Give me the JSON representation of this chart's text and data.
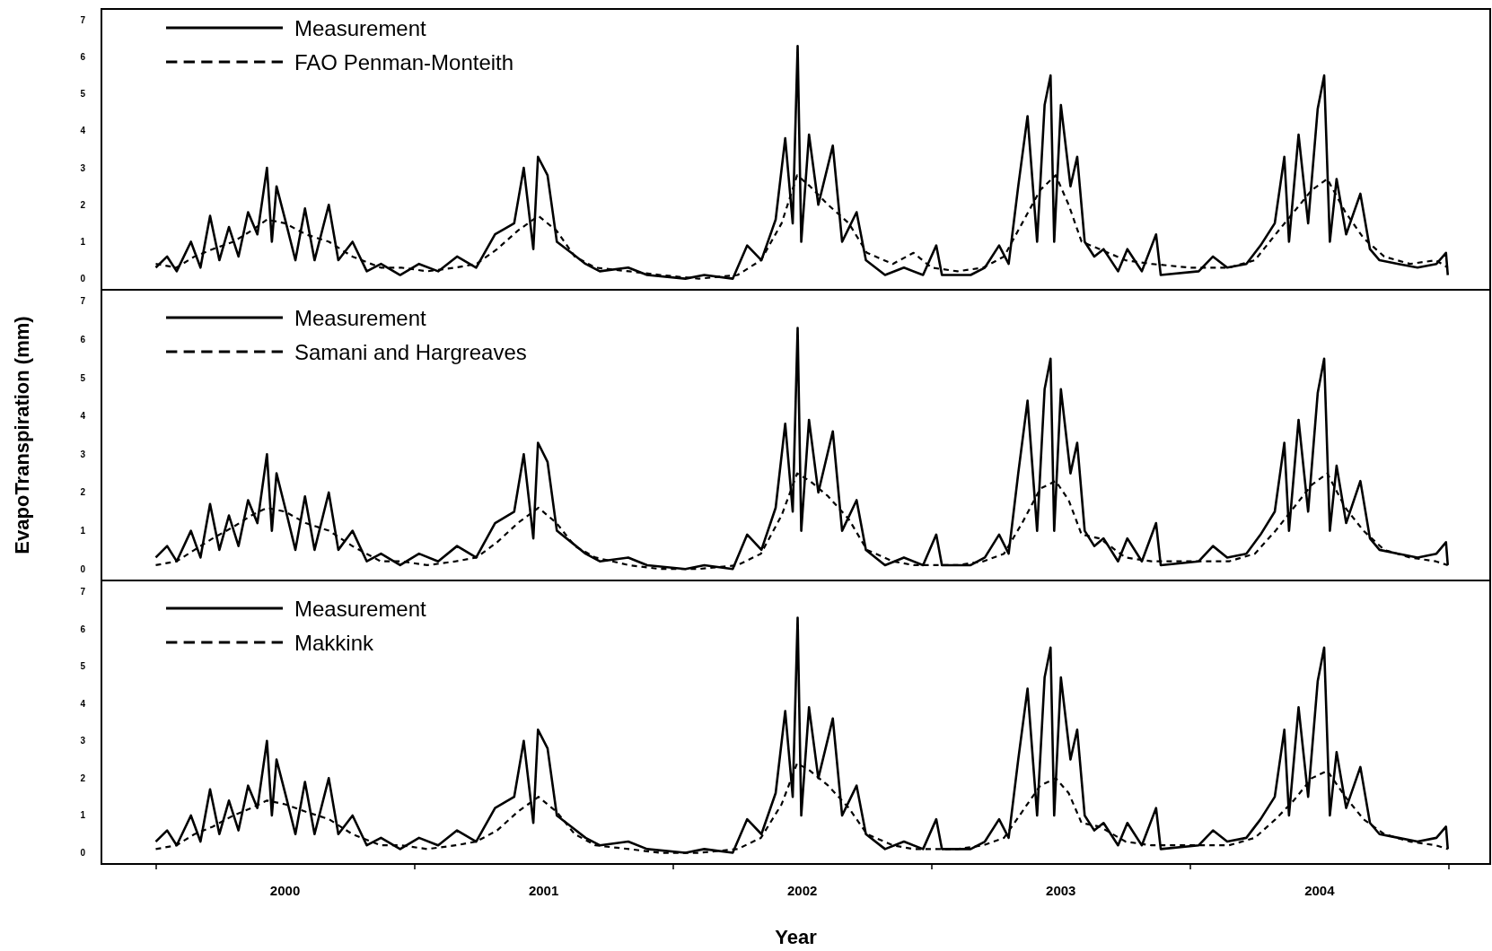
{
  "chart_data": [
    {
      "type": "line",
      "legend": "top left",
      "marker": "none",
      "grid": false,
      "tick_labels": "y",
      "xlim": [
        1999.29,
        2004.66
      ],
      "ylim": [
        -0.3,
        7.3
      ],
      "yticks": [
        0,
        1,
        2,
        3,
        4,
        5,
        6,
        7
      ],
      "series": [
        {
          "name": "Measurement",
          "color": "#000000",
          "line_style": "solid",
          "x": [
            1999.5,
            1999.544,
            1999.581,
            1999.636,
            1999.673,
            1999.71,
            1999.746,
            1999.783,
            1999.82,
            1999.857,
            1999.893,
            1999.93,
            1999.949,
            1999.967,
            2000.004,
            2000.04,
            2000.077,
            2000.114,
            2000.169,
            2000.206,
            2000.261,
            2000.316,
            2000.371,
            2000.445,
            2000.518,
            2000.592,
            2000.665,
            2000.739,
            2000.812,
            2000.886,
            2000.923,
            2000.96,
            2000.978,
            2001.015,
            2001.051,
            2001.107,
            2001.162,
            2001.217,
            2001.327,
            2001.4,
            2001.548,
            2001.621,
            2001.731,
            2001.787,
            2001.842,
            2001.897,
            2001.934,
            2001.963,
            2001.982,
            2001.996,
            2002.026,
            2002.062,
            2002.118,
            2002.154,
            2002.21,
            2002.246,
            2002.32,
            2002.393,
            2002.467,
            2002.518,
            2002.54,
            2002.651,
            2002.706,
            2002.761,
            2002.798,
            2002.835,
            2002.871,
            2002.908,
            2002.937,
            2002.96,
            2002.974,
            2003.0,
            2003.037,
            2003.063,
            2003.092,
            2003.129,
            2003.165,
            2003.221,
            2003.257,
            2003.313,
            2003.368,
            2003.386,
            2003.533,
            2003.588,
            2003.643,
            2003.717,
            2003.772,
            2003.827,
            2003.864,
            2003.882,
            2003.919,
            2003.956,
            2003.993,
            2004.018,
            2004.04,
            2004.066,
            2004.103,
            2004.158,
            2004.195,
            2004.232,
            2004.305,
            2004.379,
            2004.452,
            2004.489,
            2004.496
          ],
          "values": [
            0.3,
            0.6,
            0.2,
            1.0,
            0.3,
            1.7,
            0.5,
            1.4,
            0.6,
            1.8,
            1.2,
            3.0,
            1.0,
            2.5,
            1.5,
            0.5,
            1.9,
            0.5,
            2.0,
            0.5,
            1.0,
            0.2,
            0.4,
            0.1,
            0.4,
            0.2,
            0.6,
            0.3,
            1.2,
            1.5,
            3.0,
            0.8,
            3.3,
            2.8,
            1.0,
            0.7,
            0.4,
            0.2,
            0.3,
            0.1,
            0.0,
            0.1,
            0.0,
            0.9,
            0.5,
            1.6,
            3.8,
            1.5,
            6.3,
            1.0,
            3.9,
            2.0,
            3.6,
            1.0,
            1.8,
            0.5,
            0.1,
            0.3,
            0.1,
            0.9,
            0.1,
            0.1,
            0.3,
            0.9,
            0.4,
            2.5,
            4.4,
            1.0,
            4.7,
            5.5,
            1.0,
            4.7,
            2.5,
            3.3,
            1.0,
            0.6,
            0.8,
            0.2,
            0.8,
            0.2,
            1.2,
            0.1,
            0.2,
            0.6,
            0.3,
            0.4,
            0.9,
            1.5,
            3.3,
            1.0,
            3.9,
            1.5,
            4.6,
            5.5,
            1.0,
            2.7,
            1.2,
            2.3,
            0.8,
            0.5,
            0.4,
            0.3,
            0.4,
            0.7,
            0.1
          ]
        },
        {
          "name": "FAO Penman-Monteith",
          "color": "#000000",
          "line_style": "dashed",
          "x": [
            1999.5,
            1999.58,
            1999.65,
            1999.72,
            1999.8,
            1999.87,
            1999.93,
            2000.0,
            2000.08,
            2000.17,
            2000.26,
            2000.37,
            2000.45,
            2000.55,
            2000.66,
            2000.74,
            2000.82,
            2000.9,
            2000.98,
            2001.05,
            2001.12,
            2001.2,
            2001.33,
            2001.45,
            2001.6,
            2001.75,
            2001.84,
            2001.92,
            2001.98,
            2002.03,
            2002.1,
            2002.18,
            2002.25,
            2002.35,
            2002.43,
            2002.5,
            2002.6,
            2002.7,
            2002.78,
            2002.85,
            2002.92,
            2002.98,
            2003.03,
            2003.08,
            2003.15,
            2003.25,
            2003.35,
            2003.5,
            2003.65,
            2003.75,
            2003.83,
            2003.9,
            2003.97,
            2004.03,
            2004.1,
            2004.17,
            2004.25,
            2004.35,
            2004.45,
            2004.496
          ],
          "values": [
            0.4,
            0.3,
            0.6,
            0.8,
            1.0,
            1.3,
            1.6,
            1.5,
            1.2,
            1.0,
            0.6,
            0.3,
            0.3,
            0.2,
            0.3,
            0.4,
            0.8,
            1.3,
            1.7,
            1.3,
            0.6,
            0.3,
            0.2,
            0.1,
            0.0,
            0.1,
            0.5,
            1.5,
            2.8,
            2.5,
            2.0,
            1.5,
            0.7,
            0.4,
            0.7,
            0.3,
            0.2,
            0.3,
            0.6,
            1.5,
            2.4,
            2.8,
            2.0,
            1.0,
            0.8,
            0.5,
            0.4,
            0.3,
            0.3,
            0.5,
            1.2,
            1.8,
            2.4,
            2.7,
            1.8,
            1.1,
            0.6,
            0.4,
            0.5,
            0.3
          ]
        }
      ]
    },
    {
      "type": "line",
      "legend": "top left",
      "marker": "none",
      "grid": false,
      "tick_labels": "y",
      "ylabel": "EvapoTranspiration (mm)",
      "xlim": [
        1999.29,
        2004.66
      ],
      "ylim": [
        -0.3,
        7.3
      ],
      "yticks": [
        0,
        1,
        2,
        3,
        4,
        5,
        6,
        7
      ],
      "series": [
        {
          "name": "Measurement",
          "color": "#000000",
          "line_style": "solid",
          "x": [
            1999.5,
            1999.544,
            1999.581,
            1999.636,
            1999.673,
            1999.71,
            1999.746,
            1999.783,
            1999.82,
            1999.857,
            1999.893,
            1999.93,
            1999.949,
            1999.967,
            2000.004,
            2000.04,
            2000.077,
            2000.114,
            2000.169,
            2000.206,
            2000.261,
            2000.316,
            2000.371,
            2000.445,
            2000.518,
            2000.592,
            2000.665,
            2000.739,
            2000.812,
            2000.886,
            2000.923,
            2000.96,
            2000.978,
            2001.015,
            2001.051,
            2001.107,
            2001.162,
            2001.217,
            2001.327,
            2001.4,
            2001.548,
            2001.621,
            2001.731,
            2001.787,
            2001.842,
            2001.897,
            2001.934,
            2001.963,
            2001.982,
            2001.996,
            2002.026,
            2002.062,
            2002.118,
            2002.154,
            2002.21,
            2002.246,
            2002.32,
            2002.393,
            2002.467,
            2002.518,
            2002.54,
            2002.651,
            2002.706,
            2002.761,
            2002.798,
            2002.835,
            2002.871,
            2002.908,
            2002.937,
            2002.96,
            2002.974,
            2003.0,
            2003.037,
            2003.063,
            2003.092,
            2003.129,
            2003.165,
            2003.221,
            2003.257,
            2003.313,
            2003.368,
            2003.386,
            2003.533,
            2003.588,
            2003.643,
            2003.717,
            2003.772,
            2003.827,
            2003.864,
            2003.882,
            2003.919,
            2003.956,
            2003.993,
            2004.018,
            2004.04,
            2004.066,
            2004.103,
            2004.158,
            2004.195,
            2004.232,
            2004.305,
            2004.379,
            2004.452,
            2004.489,
            2004.496
          ],
          "values": [
            0.3,
            0.6,
            0.2,
            1.0,
            0.3,
            1.7,
            0.5,
            1.4,
            0.6,
            1.8,
            1.2,
            3.0,
            1.0,
            2.5,
            1.5,
            0.5,
            1.9,
            0.5,
            2.0,
            0.5,
            1.0,
            0.2,
            0.4,
            0.1,
            0.4,
            0.2,
            0.6,
            0.3,
            1.2,
            1.5,
            3.0,
            0.8,
            3.3,
            2.8,
            1.0,
            0.7,
            0.4,
            0.2,
            0.3,
            0.1,
            0.0,
            0.1,
            0.0,
            0.9,
            0.5,
            1.6,
            3.8,
            1.5,
            6.3,
            1.0,
            3.9,
            2.0,
            3.6,
            1.0,
            1.8,
            0.5,
            0.1,
            0.3,
            0.1,
            0.9,
            0.1,
            0.1,
            0.3,
            0.9,
            0.4,
            2.5,
            4.4,
            1.0,
            4.7,
            5.5,
            1.0,
            4.7,
            2.5,
            3.3,
            1.0,
            0.6,
            0.8,
            0.2,
            0.8,
            0.2,
            1.2,
            0.1,
            0.2,
            0.6,
            0.3,
            0.4,
            0.9,
            1.5,
            3.3,
            1.0,
            3.9,
            1.5,
            4.6,
            5.5,
            1.0,
            2.7,
            1.2,
            2.3,
            0.8,
            0.5,
            0.4,
            0.3,
            0.4,
            0.7,
            0.1
          ]
        },
        {
          "name": "Samani and Hargreaves",
          "color": "#000000",
          "line_style": "dashed",
          "x": [
            1999.5,
            1999.58,
            1999.65,
            1999.72,
            1999.8,
            1999.87,
            1999.93,
            2000.0,
            2000.08,
            2000.17,
            2000.26,
            2000.37,
            2000.45,
            2000.55,
            2000.66,
            2000.74,
            2000.82,
            2000.9,
            2000.98,
            2001.05,
            2001.12,
            2001.2,
            2001.33,
            2001.45,
            2001.6,
            2001.75,
            2001.84,
            2001.92,
            2001.98,
            2002.03,
            2002.1,
            2002.18,
            2002.25,
            2002.35,
            2002.43,
            2002.5,
            2002.6,
            2002.7,
            2002.78,
            2002.85,
            2002.92,
            2002.98,
            2003.03,
            2003.08,
            2003.15,
            2003.25,
            2003.35,
            2003.5,
            2003.65,
            2003.75,
            2003.83,
            2003.9,
            2003.97,
            2004.03,
            2004.1,
            2004.17,
            2004.25,
            2004.35,
            2004.45,
            2004.496
          ],
          "values": [
            0.1,
            0.2,
            0.5,
            0.8,
            1.1,
            1.4,
            1.6,
            1.5,
            1.2,
            1.0,
            0.6,
            0.2,
            0.2,
            0.1,
            0.2,
            0.3,
            0.7,
            1.2,
            1.6,
            1.2,
            0.6,
            0.3,
            0.1,
            0.0,
            0.0,
            0.1,
            0.4,
            1.4,
            2.5,
            2.3,
            1.9,
            1.3,
            0.5,
            0.2,
            0.1,
            0.1,
            0.1,
            0.2,
            0.4,
            1.2,
            2.1,
            2.3,
            1.8,
            0.9,
            0.8,
            0.3,
            0.2,
            0.2,
            0.2,
            0.4,
            1.0,
            1.6,
            2.2,
            2.5,
            1.6,
            1.0,
            0.5,
            0.3,
            0.2,
            0.1
          ]
        }
      ]
    },
    {
      "type": "line",
      "legend": "top left",
      "marker": "none",
      "grid": false,
      "xlabel": "Year",
      "xlim": [
        1999.29,
        2004.66
      ],
      "ylim": [
        -0.3,
        7.3
      ],
      "yticks": [
        0,
        1,
        2,
        3,
        4,
        5,
        6,
        7
      ],
      "xticks": [
        {
          "value": 1999.5,
          "label": null
        },
        2000,
        {
          "value": 2000.5,
          "label": null
        },
        2001,
        {
          "value": 2001.5,
          "label": null
        },
        2002,
        {
          "value": 2002.5,
          "label": null
        },
        2003,
        {
          "value": 2003.5,
          "label": null
        },
        2004,
        {
          "value": 2004.5,
          "label": null
        }
      ],
      "series": [
        {
          "name": "Measurement",
          "color": "#000000",
          "line_style": "solid",
          "x": [
            1999.5,
            1999.544,
            1999.581,
            1999.636,
            1999.673,
            1999.71,
            1999.746,
            1999.783,
            1999.82,
            1999.857,
            1999.893,
            1999.93,
            1999.949,
            1999.967,
            2000.004,
            2000.04,
            2000.077,
            2000.114,
            2000.169,
            2000.206,
            2000.261,
            2000.316,
            2000.371,
            2000.445,
            2000.518,
            2000.592,
            2000.665,
            2000.739,
            2000.812,
            2000.886,
            2000.923,
            2000.96,
            2000.978,
            2001.015,
            2001.051,
            2001.107,
            2001.162,
            2001.217,
            2001.327,
            2001.4,
            2001.548,
            2001.621,
            2001.731,
            2001.787,
            2001.842,
            2001.897,
            2001.934,
            2001.963,
            2001.982,
            2001.996,
            2002.026,
            2002.062,
            2002.118,
            2002.154,
            2002.21,
            2002.246,
            2002.32,
            2002.393,
            2002.467,
            2002.518,
            2002.54,
            2002.651,
            2002.706,
            2002.761,
            2002.798,
            2002.835,
            2002.871,
            2002.908,
            2002.937,
            2002.96,
            2002.974,
            2003.0,
            2003.037,
            2003.063,
            2003.092,
            2003.129,
            2003.165,
            2003.221,
            2003.257,
            2003.313,
            2003.368,
            2003.386,
            2003.533,
            2003.588,
            2003.643,
            2003.717,
            2003.772,
            2003.827,
            2003.864,
            2003.882,
            2003.919,
            2003.956,
            2003.993,
            2004.018,
            2004.04,
            2004.066,
            2004.103,
            2004.158,
            2004.195,
            2004.232,
            2004.305,
            2004.379,
            2004.452,
            2004.489,
            2004.496
          ],
          "values": [
            0.3,
            0.6,
            0.2,
            1.0,
            0.3,
            1.7,
            0.5,
            1.4,
            0.6,
            1.8,
            1.2,
            3.0,
            1.0,
            2.5,
            1.5,
            0.5,
            1.9,
            0.5,
            2.0,
            0.5,
            1.0,
            0.2,
            0.4,
            0.1,
            0.4,
            0.2,
            0.6,
            0.3,
            1.2,
            1.5,
            3.0,
            0.8,
            3.3,
            2.8,
            1.0,
            0.7,
            0.4,
            0.2,
            0.3,
            0.1,
            0.0,
            0.1,
            0.0,
            0.9,
            0.5,
            1.6,
            3.8,
            1.5,
            6.3,
            1.0,
            3.9,
            2.0,
            3.6,
            1.0,
            1.8,
            0.5,
            0.1,
            0.3,
            0.1,
            0.9,
            0.1,
            0.1,
            0.3,
            0.9,
            0.4,
            2.5,
            4.4,
            1.0,
            4.7,
            5.5,
            1.0,
            4.7,
            2.5,
            3.3,
            1.0,
            0.6,
            0.8,
            0.2,
            0.8,
            0.2,
            1.2,
            0.1,
            0.2,
            0.6,
            0.3,
            0.4,
            0.9,
            1.5,
            3.3,
            1.0,
            3.9,
            1.5,
            4.6,
            5.5,
            1.0,
            2.7,
            1.2,
            2.3,
            0.8,
            0.5,
            0.4,
            0.3,
            0.4,
            0.7,
            0.1
          ]
        },
        {
          "name": "Makkink",
          "color": "#000000",
          "line_style": "dashed",
          "x": [
            1999.5,
            1999.58,
            1999.65,
            1999.72,
            1999.8,
            1999.87,
            1999.93,
            2000.0,
            2000.08,
            2000.17,
            2000.26,
            2000.37,
            2000.45,
            2000.55,
            2000.66,
            2000.74,
            2000.82,
            2000.9,
            2000.98,
            2001.05,
            2001.12,
            2001.2,
            2001.33,
            2001.45,
            2001.6,
            2001.75,
            2001.84,
            2001.92,
            2001.98,
            2002.03,
            2002.1,
            2002.18,
            2002.25,
            2002.35,
            2002.43,
            2002.5,
            2002.6,
            2002.7,
            2002.78,
            2002.85,
            2002.92,
            2002.98,
            2003.03,
            2003.08,
            2003.15,
            2003.25,
            2003.35,
            2003.5,
            2003.65,
            2003.75,
            2003.83,
            2003.9,
            2003.97,
            2004.03,
            2004.1,
            2004.17,
            2004.25,
            2004.35,
            2004.45,
            2004.496
          ],
          "values": [
            0.1,
            0.2,
            0.5,
            0.7,
            1.0,
            1.2,
            1.4,
            1.3,
            1.1,
            0.9,
            0.5,
            0.2,
            0.2,
            0.1,
            0.2,
            0.3,
            0.6,
            1.1,
            1.5,
            1.1,
            0.5,
            0.2,
            0.1,
            0.0,
            0.0,
            0.1,
            0.4,
            1.3,
            2.4,
            2.2,
            1.8,
            1.2,
            0.5,
            0.2,
            0.1,
            0.1,
            0.1,
            0.2,
            0.4,
            1.1,
            1.8,
            2.0,
            1.6,
            0.8,
            0.7,
            0.3,
            0.2,
            0.2,
            0.2,
            0.4,
            0.9,
            1.4,
            2.0,
            2.2,
            1.5,
            0.9,
            0.5,
            0.3,
            0.2,
            0.1
          ]
        }
      ]
    }
  ]
}
